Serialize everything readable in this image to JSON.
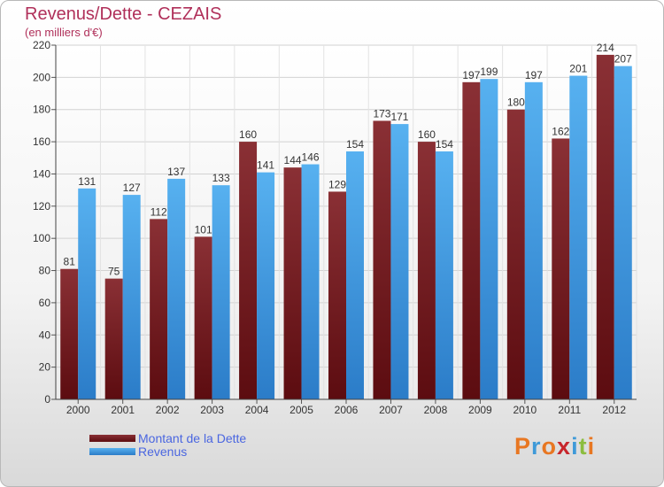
{
  "header": {
    "title": "Revenus/Dette - CEZAIS",
    "subtitle": "(en milliers d'€)"
  },
  "legend": {
    "items": [
      {
        "label": "Montant de la Dette",
        "color": "#7a1a1e"
      },
      {
        "label": "Revenus",
        "color": "#4aa3e6"
      }
    ]
  },
  "logo": {
    "text": "Proxiti",
    "colors": [
      "#e87722",
      "#3f9ad8",
      "#e87722",
      "#c7262c",
      "#3f9ad8",
      "#8cbd3f",
      "#e87722"
    ]
  },
  "chart_data": {
    "type": "bar",
    "title": "Revenus/Dette - CEZAIS",
    "subtitle": "(en milliers d'€)",
    "categories": [
      "2000",
      "2001",
      "2002",
      "2003",
      "2004",
      "2005",
      "2006",
      "2007",
      "2008",
      "2009",
      "2010",
      "2011",
      "2012"
    ],
    "series": [
      {
        "name": "Montant de la Dette",
        "color": "#7a1a1e",
        "values": [
          81,
          75,
          112,
          101,
          160,
          144,
          129,
          173,
          160,
          197,
          180,
          162,
          214
        ]
      },
      {
        "name": "Revenus",
        "color": "#4aa3e6",
        "values": [
          131,
          127,
          137,
          133,
          141,
          146,
          154,
          171,
          154,
          199,
          197,
          201,
          207
        ]
      }
    ],
    "ylim": [
      0,
      220
    ],
    "yticks": [
      0,
      20,
      40,
      60,
      80,
      100,
      120,
      140,
      160,
      180,
      200,
      220
    ],
    "grid": true,
    "legend_position": "bottom-left"
  }
}
